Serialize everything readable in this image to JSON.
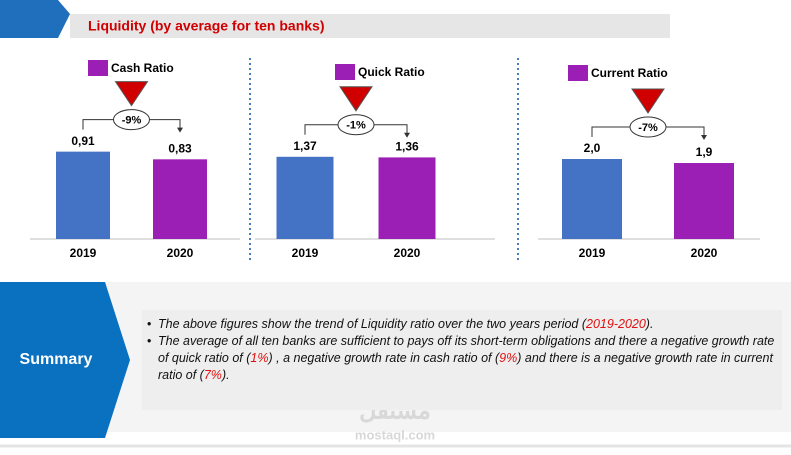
{
  "title": "Liquidity (by average  for ten banks)",
  "chart_data": [
    {
      "type": "bar",
      "legend": "Cash Ratio",
      "legend_color": "#9c1fb5",
      "categories": [
        "2019",
        "2020"
      ],
      "values": [
        0.91,
        0.83
      ],
      "value_labels": [
        "0,91",
        "0,83"
      ],
      "colors": [
        "#4472c4",
        "#9c1fb5"
      ],
      "ylim": [
        0,
        1
      ],
      "change": "-9%"
    },
    {
      "type": "bar",
      "legend": "Quick Ratio",
      "legend_color": "#9c1fb5",
      "categories": [
        "2019",
        "2020"
      ],
      "values": [
        1.37,
        1.36
      ],
      "value_labels": [
        "1,37",
        "1,36"
      ],
      "colors": [
        "#4472c4",
        "#9c1fb5"
      ],
      "ylim": [
        0,
        1.6
      ],
      "change": "-1%"
    },
    {
      "type": "bar",
      "legend": "Current  Ratio",
      "legend_color": "#9c1fb5",
      "categories": [
        "2019",
        "2020"
      ],
      "values": [
        2.0,
        1.9
      ],
      "value_labels": [
        "2,0",
        "1,9"
      ],
      "colors": [
        "#4472c4",
        "#9c1fb5"
      ],
      "ylim": [
        0,
        2.4
      ],
      "change": "-7%"
    }
  ],
  "summary": {
    "label": "Summary",
    "highlight_color": "#e01010",
    "bullets": [
      [
        "The above figures show the trend of Liquidity ratio over the two years period (",
        "2019-2020",
        ")."
      ],
      [
        "The average of all ten banks are sufficient to pays off its short-term obligations and there a negative growth rate of quick ratio of (",
        "1%",
        ") , a negative growth rate  in cash ratio of (",
        "9%",
        ") and there is a negative growth rate in current ratio of (",
        "7%",
        ")."
      ]
    ]
  },
  "watermark": [
    "مستقل",
    "mostaql.com"
  ]
}
